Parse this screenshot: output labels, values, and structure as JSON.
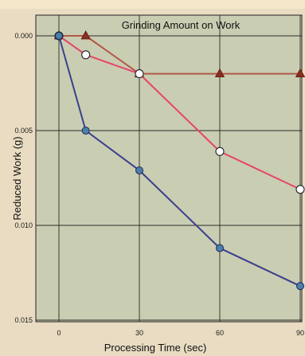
{
  "chart_data": {
    "type": "line",
    "title": "Grinding Amount on Work",
    "xlabel": "Processing Time (sec)",
    "ylabel": "Reduced Work (g)",
    "x_ticks": [
      "0",
      "30",
      "60",
      "90"
    ],
    "y_ticks": [
      "0.000",
      "0.005",
      "0.010",
      "0.015"
    ],
    "xlim": [
      0,
      90
    ],
    "ylim": [
      0.0,
      0.015
    ],
    "y_inverted": true,
    "grid": true,
    "legend": "none",
    "background_color": "#c9cdb2",
    "series": [
      {
        "marker": "triangle",
        "color": "#b0594a",
        "marker_color": "#8c2d20",
        "x": [
          0,
          10,
          30,
          60,
          90
        ],
        "y": [
          0.0,
          0.0,
          0.002,
          0.002,
          0.002
        ]
      },
      {
        "marker": "open-circle",
        "color": "#e8446a",
        "marker_color": "#ffffff",
        "x": [
          0,
          10,
          30,
          60,
          90
        ],
        "y": [
          0.0,
          0.001,
          0.002,
          0.0061,
          0.0081
        ]
      },
      {
        "marker": "filled-circle",
        "color": "#3b3f8c",
        "marker_color": "#4c7fa8",
        "x": [
          0,
          10,
          30,
          60,
          90
        ],
        "y": [
          0.0,
          0.005,
          0.0071,
          0.0112,
          0.0132
        ]
      }
    ]
  }
}
